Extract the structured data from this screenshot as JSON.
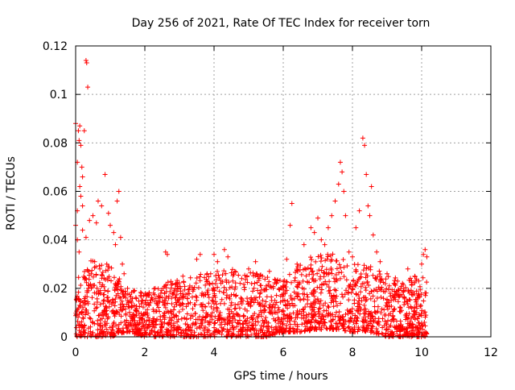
{
  "chart_data": {
    "type": "scatter",
    "title": "Day 256 of 2021, Rate Of TEC Index for receiver torn",
    "xlabel": "GPS time / hours",
    "ylabel": "ROTI / TECUs",
    "xlim": [
      0,
      12
    ],
    "ylim": [
      0,
      0.12
    ],
    "xticks": [
      0,
      2,
      4,
      6,
      8,
      10,
      12
    ],
    "xtick_labels": [
      "0",
      "2",
      "4",
      "6",
      "8",
      "10",
      "12"
    ],
    "yticks": [
      0,
      0.02,
      0.04,
      0.06,
      0.08,
      0.1,
      0.12
    ],
    "ytick_labels": [
      "0",
      "0.02",
      "0.04",
      "0.06",
      "0.08",
      "0.1",
      "0.12"
    ],
    "grid": true,
    "marker": "+",
    "color": "#ff0000",
    "series": [
      {
        "name": "ROTI",
        "points": [
          [
            0.0,
            0.088
          ],
          [
            0.05,
            0.072
          ],
          [
            0.08,
            0.085
          ],
          [
            0.1,
            0.081
          ],
          [
            0.12,
            0.087
          ],
          [
            0.15,
            0.079
          ],
          [
            0.18,
            0.07
          ],
          [
            0.2,
            0.066
          ],
          [
            0.25,
            0.085
          ],
          [
            0.3,
            0.114
          ],
          [
            0.32,
            0.113
          ],
          [
            0.35,
            0.103
          ],
          [
            0.12,
            0.062
          ],
          [
            0.15,
            0.058
          ],
          [
            0.2,
            0.054
          ],
          [
            0.05,
            0.052
          ],
          [
            0.0,
            0.046
          ],
          [
            0.05,
            0.04
          ],
          [
            0.1,
            0.035
          ],
          [
            0.2,
            0.044
          ],
          [
            0.3,
            0.041
          ],
          [
            0.4,
            0.048
          ],
          [
            0.5,
            0.05
          ],
          [
            0.6,
            0.047
          ],
          [
            0.65,
            0.056
          ],
          [
            0.75,
            0.054
          ],
          [
            0.85,
            0.067
          ],
          [
            0.95,
            0.051
          ],
          [
            1.0,
            0.046
          ],
          [
            1.1,
            0.043
          ],
          [
            1.2,
            0.056
          ],
          [
            1.25,
            0.06
          ],
          [
            1.3,
            0.041
          ],
          [
            1.15,
            0.038
          ],
          [
            0.9,
            0.03
          ],
          [
            0.7,
            0.028
          ],
          [
            0.55,
            0.031
          ],
          [
            0.45,
            0.026
          ],
          [
            1.35,
            0.03
          ],
          [
            1.4,
            0.026
          ],
          [
            1.5,
            0.02
          ],
          [
            1.7,
            0.019
          ],
          [
            1.9,
            0.018
          ],
          [
            2.1,
            0.017
          ],
          [
            2.3,
            0.02
          ],
          [
            2.6,
            0.035
          ],
          [
            2.65,
            0.034
          ],
          [
            2.9,
            0.022
          ],
          [
            3.1,
            0.025
          ],
          [
            3.3,
            0.021
          ],
          [
            3.5,
            0.032
          ],
          [
            3.6,
            0.034
          ],
          [
            3.8,
            0.026
          ],
          [
            4.0,
            0.034
          ],
          [
            4.1,
            0.031
          ],
          [
            4.3,
            0.036
          ],
          [
            4.4,
            0.033
          ],
          [
            4.6,
            0.027
          ],
          [
            4.8,
            0.024
          ],
          [
            5.0,
            0.028
          ],
          [
            5.2,
            0.031
          ],
          [
            5.4,
            0.025
          ],
          [
            5.6,
            0.027
          ],
          [
            5.8,
            0.022
          ],
          [
            6.0,
            0.021
          ],
          [
            6.1,
            0.032
          ],
          [
            6.2,
            0.046
          ],
          [
            6.25,
            0.055
          ],
          [
            6.4,
            0.03
          ],
          [
            6.6,
            0.038
          ],
          [
            6.8,
            0.045
          ],
          [
            6.9,
            0.043
          ],
          [
            7.0,
            0.049
          ],
          [
            7.1,
            0.04
          ],
          [
            7.2,
            0.038
          ],
          [
            7.3,
            0.045
          ],
          [
            7.4,
            0.05
          ],
          [
            7.5,
            0.056
          ],
          [
            7.6,
            0.063
          ],
          [
            7.65,
            0.072
          ],
          [
            7.7,
            0.068
          ],
          [
            7.75,
            0.06
          ],
          [
            7.8,
            0.05
          ],
          [
            7.9,
            0.035
          ],
          [
            8.0,
            0.033
          ],
          [
            8.1,
            0.045
          ],
          [
            8.2,
            0.052
          ],
          [
            8.3,
            0.082
          ],
          [
            8.35,
            0.079
          ],
          [
            8.4,
            0.067
          ],
          [
            8.45,
            0.054
          ],
          [
            8.5,
            0.05
          ],
          [
            8.55,
            0.062
          ],
          [
            8.6,
            0.042
          ],
          [
            8.7,
            0.035
          ],
          [
            8.8,
            0.031
          ],
          [
            9.0,
            0.026
          ],
          [
            9.2,
            0.022
          ],
          [
            9.4,
            0.02
          ],
          [
            9.6,
            0.028
          ],
          [
            9.8,
            0.025
          ],
          [
            10.0,
            0.03
          ],
          [
            10.05,
            0.034
          ],
          [
            10.1,
            0.036
          ],
          [
            10.15,
            0.033
          ]
        ],
        "dense_band": {
          "x_range": [
            0,
            10.15
          ],
          "envelope": [
            [
              0.0,
              0.0,
              0.03
            ],
            [
              0.5,
              0.0,
              0.032
            ],
            [
              1.0,
              0.0,
              0.03
            ],
            [
              1.5,
              0.002,
              0.02
            ],
            [
              2.0,
              0.0,
              0.018
            ],
            [
              2.5,
              0.0,
              0.022
            ],
            [
              3.0,
              0.0,
              0.024
            ],
            [
              3.5,
              0.0,
              0.026
            ],
            [
              4.0,
              0.0,
              0.028
            ],
            [
              4.5,
              0.0,
              0.028
            ],
            [
              5.0,
              0.0,
              0.027
            ],
            [
              5.5,
              0.0,
              0.025
            ],
            [
              6.0,
              0.002,
              0.024
            ],
            [
              6.5,
              0.002,
              0.03
            ],
            [
              7.0,
              0.003,
              0.035
            ],
            [
              7.5,
              0.003,
              0.034
            ],
            [
              8.0,
              0.002,
              0.03
            ],
            [
              8.5,
              0.002,
              0.03
            ],
            [
              9.0,
              0.0,
              0.025
            ],
            [
              9.5,
              0.0,
              0.024
            ],
            [
              10.0,
              0.0,
              0.026
            ],
            [
              10.15,
              0.0,
              0.025
            ]
          ],
          "point_count": 2200
        }
      }
    ]
  }
}
